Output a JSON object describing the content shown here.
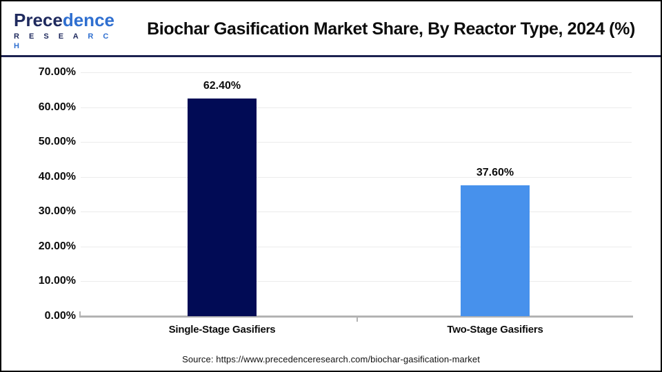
{
  "header": {
    "logo": {
      "word_dark": "Prece",
      "word_light": "dence",
      "sub_dark": "R E S E A ",
      "sub_light": "R C H"
    },
    "title": "Biochar Gasification Market Share, By Reactor Type, 2024 (%)"
  },
  "chart_data": {
    "type": "bar",
    "title": "Biochar Gasification Market Share, By Reactor Type, 2024 (%)",
    "categories": [
      "Single-Stage Gasifiers",
      "Two-Stage Gasifiers"
    ],
    "values": [
      62.4,
      37.6
    ],
    "value_labels": [
      "62.40%",
      "37.60%"
    ],
    "bar_colors": [
      "#010b55",
      "#4791ec"
    ],
    "xlabel": "",
    "ylabel": "",
    "ylim": [
      0,
      70
    ],
    "yticks": [
      0,
      10,
      20,
      30,
      40,
      50,
      60,
      70
    ],
    "ytick_labels": [
      "0.00%",
      "10.00%",
      "20.00%",
      "30.00%",
      "40.00%",
      "50.00%",
      "60.00%",
      "70.00%"
    ],
    "grid": true,
    "legend": false
  },
  "footer": {
    "source": "Source: https://www.precedenceresearch.com/biochar-gasification-market"
  },
  "colors": {
    "bar_navy": "#010b55",
    "bar_blue": "#4791ec",
    "divider_navy": "#1b2150",
    "axis_gray": "#b3b3b3",
    "gridline_gray": "#ebebeb",
    "logo_navy": "#1f2a5e",
    "logo_blue": "#2f6fd0"
  }
}
